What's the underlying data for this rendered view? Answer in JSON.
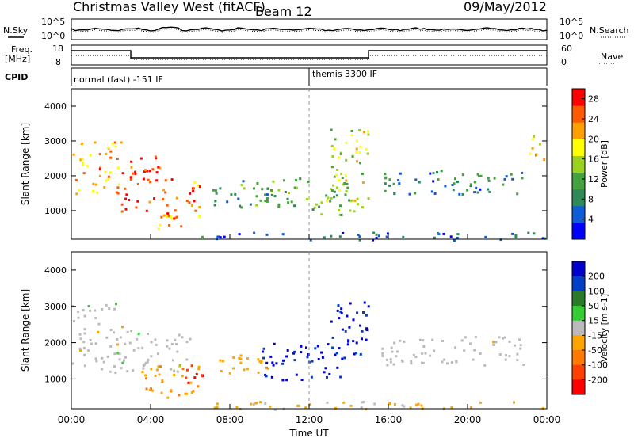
{
  "header": {
    "station": "Christmas Valley West (fitACF)",
    "beam": "Beam 12",
    "date": "09/May/2012"
  },
  "strip_labels": {
    "nsky": "N.Sky",
    "nsearch": "N.Search",
    "freq_line1": "Freq.",
    "freq_line2": "[MHz]",
    "nave": "Nave",
    "cpid": "CPID",
    "noise_top": "10^5",
    "noise_bottom": "10^0",
    "freq_top": "18",
    "freq_bottom": "8",
    "nave_top": "60",
    "nave_bottom": "0"
  },
  "cpid_segments": [
    {
      "label": "normal (fast) -151 IF",
      "start_hour": 0
    },
    {
      "label": "themis 3300 IF",
      "start_hour": 12
    }
  ],
  "xaxis": {
    "label": "Time UT",
    "ticks": [
      "00:00",
      "04:00",
      "08:00",
      "12:00",
      "16:00",
      "20:00",
      "00:00"
    ]
  },
  "colors": {
    "power_scale": [
      "#0000ff",
      "#0e5cd8",
      "#2f8a57",
      "#43a13e",
      "#9ad21f",
      "#ffff00",
      "#ffa000",
      "#ff5a00",
      "#ff0000"
    ],
    "velocity_scale": [
      "#0000cc",
      "#0040c8",
      "#2a7a2a",
      "#33cc33",
      "#bbbbbb",
      "#ffa500",
      "#ff7800",
      "#ff4000",
      "#ff0000"
    ]
  },
  "chart_data": [
    {
      "type": "heatmap",
      "panel": "power",
      "ylabel": "Slant Range [km]",
      "ylim": [
        180,
        4500
      ],
      "yticks": [
        "1000",
        "2000",
        "3000",
        "4000"
      ],
      "xlim": [
        0,
        24
      ],
      "colorbar": {
        "label": "Power [dB]",
        "ticks": [
          "4",
          "8",
          "12",
          "16",
          "20",
          "24",
          "28"
        ],
        "range": [
          0,
          30
        ]
      },
      "echo_regions": [
        {
          "t": [
            0.0,
            2.5
          ],
          "r": [
            1500,
            3000
          ],
          "power": 22
        },
        {
          "t": [
            2.5,
            4.5
          ],
          "r": [
            1000,
            2600
          ],
          "power": 26
        },
        {
          "t": [
            4.5,
            6.5
          ],
          "r": [
            800,
            2000
          ],
          "power": 24
        },
        {
          "t": [
            3.5,
            5.5
          ],
          "r": [
            500,
            900
          ],
          "power": 22
        },
        {
          "t": [
            7.0,
            12.0
          ],
          "r": [
            1100,
            2000
          ],
          "power": 10
        },
        {
          "t": [
            12.0,
            14.0
          ],
          "r": [
            900,
            1800
          ],
          "power": 12
        },
        {
          "t": [
            13.0,
            15.0
          ],
          "r": [
            1000,
            3500
          ],
          "power": 16
        },
        {
          "t": [
            15.5,
            23.0
          ],
          "r": [
            1500,
            2200
          ],
          "power": 8
        },
        {
          "t": [
            23.0,
            24.0
          ],
          "r": [
            2500,
            3200
          ],
          "power": 18
        },
        {
          "t": [
            6.5,
            24.0
          ],
          "r": [
            180,
            400
          ],
          "power": 6
        }
      ]
    },
    {
      "type": "heatmap",
      "panel": "velocity",
      "ylabel": "Slant Range [km]",
      "ylim": [
        180,
        4500
      ],
      "yticks": [
        "1000",
        "2000",
        "3000",
        "4000"
      ],
      "xlim": [
        0,
        24
      ],
      "colorbar": {
        "label": "Velocity [m s-1]",
        "ticks": [
          "200",
          "100",
          "50",
          "15",
          "-15",
          "-50",
          "-100",
          "-200"
        ],
        "range": [
          -250,
          250
        ]
      },
      "echo_regions": [
        {
          "t": [
            0.0,
            3.0
          ],
          "r": [
            1200,
            3100
          ],
          "velocity": 0
        },
        {
          "t": [
            3.0,
            6.0
          ],
          "r": [
            1200,
            2300
          ],
          "velocity": 0
        },
        {
          "t": [
            3.5,
            6.5
          ],
          "r": [
            500,
            1400
          ],
          "velocity": -80
        },
        {
          "t": [
            5.5,
            6.8
          ],
          "r": [
            900,
            1500
          ],
          "velocity": -200
        },
        {
          "t": [
            7.0,
            10.0
          ],
          "r": [
            1100,
            1700
          ],
          "velocity": -60
        },
        {
          "t": [
            9.5,
            14.0
          ],
          "r": [
            1000,
            2000
          ],
          "velocity": 200
        },
        {
          "t": [
            13.0,
            15.0
          ],
          "r": [
            1700,
            3200
          ],
          "velocity": 200
        },
        {
          "t": [
            15.5,
            23.0
          ],
          "r": [
            1400,
            2200
          ],
          "velocity": 0
        },
        {
          "t": [
            6.5,
            24.0
          ],
          "r": [
            180,
            400
          ],
          "velocity": -40
        }
      ]
    }
  ]
}
